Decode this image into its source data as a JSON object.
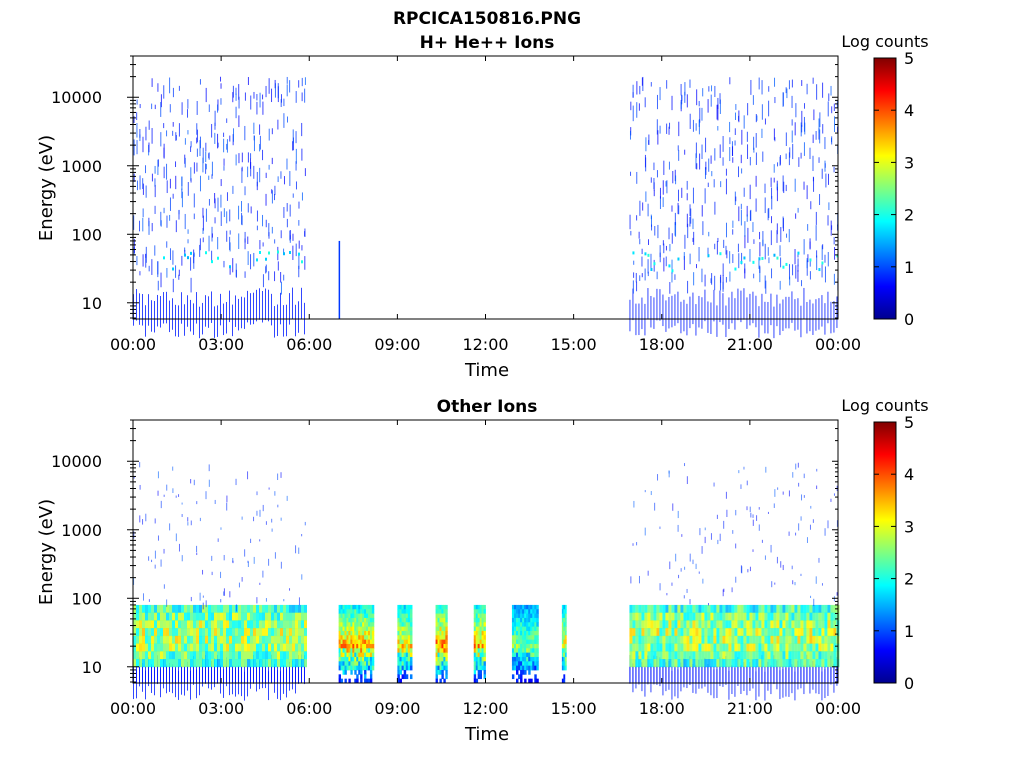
{
  "figure": {
    "title_line1": "RPCICA150816.PNG"
  },
  "chart_data": [
    {
      "type": "heatmap",
      "title": "H+ He++ Ions",
      "xlabel": "Time",
      "ylabel": "Energy (eV)",
      "y_scale": "log",
      "ylim": [
        5.8,
        40000
      ],
      "xlim_hours": [
        0,
        24
      ],
      "x_ticks": [
        {
          "hours": 0,
          "label": "00:00"
        },
        {
          "hours": 3,
          "label": "03:00"
        },
        {
          "hours": 6,
          "label": "06:00"
        },
        {
          "hours": 9,
          "label": "09:00"
        },
        {
          "hours": 12,
          "label": "12:00"
        },
        {
          "hours": 15,
          "label": "15:00"
        },
        {
          "hours": 18,
          "label": "18:00"
        },
        {
          "hours": 21,
          "label": "21:00"
        },
        {
          "hours": 24,
          "label": "00:00"
        }
      ],
      "y_ticks": [
        {
          "value": 10,
          "label": "10"
        },
        {
          "value": 100,
          "label": "100"
        },
        {
          "value": 1000,
          "label": "1000"
        },
        {
          "value": 10000,
          "label": "10000"
        }
      ],
      "colorbar": {
        "label": "Log counts",
        "range": [
          0,
          5
        ],
        "ticks": [
          "0",
          "1",
          "2",
          "3",
          "4",
          "5"
        ],
        "colormap": "jet"
      },
      "data_blocks": [
        {
          "t_start": 0.0,
          "t_end": 5.9,
          "e_low": 5.8,
          "e_high": 20000,
          "peak_log_counts": 1.8,
          "style": "sparse"
        },
        {
          "t_start": 7.0,
          "t_end": 7.05,
          "e_low": 5.8,
          "e_high": 80,
          "peak_log_counts": 0.3,
          "style": "spike"
        },
        {
          "t_start": 16.9,
          "t_end": 24.0,
          "e_low": 5.8,
          "e_high": 20000,
          "peak_log_counts": 1.8,
          "style": "sparse"
        }
      ]
    },
    {
      "type": "heatmap",
      "title": "Other Ions",
      "xlabel": "Time",
      "ylabel": "Energy (eV)",
      "y_scale": "log",
      "ylim": [
        5.8,
        40000
      ],
      "xlim_hours": [
        0,
        24
      ],
      "x_ticks": [
        {
          "hours": 0,
          "label": "00:00"
        },
        {
          "hours": 3,
          "label": "03:00"
        },
        {
          "hours": 6,
          "label": "06:00"
        },
        {
          "hours": 9,
          "label": "09:00"
        },
        {
          "hours": 12,
          "label": "12:00"
        },
        {
          "hours": 15,
          "label": "15:00"
        },
        {
          "hours": 18,
          "label": "18:00"
        },
        {
          "hours": 21,
          "label": "21:00"
        },
        {
          "hours": 24,
          "label": "00:00"
        }
      ],
      "y_ticks": [
        {
          "value": 10,
          "label": "10"
        },
        {
          "value": 100,
          "label": "100"
        },
        {
          "value": 1000,
          "label": "1000"
        },
        {
          "value": 10000,
          "label": "10000"
        }
      ],
      "colorbar": {
        "label": "Log counts",
        "range": [
          0,
          5
        ],
        "ticks": [
          "0",
          "1",
          "2",
          "3",
          "4",
          "5"
        ],
        "colormap": "jet"
      },
      "data_blocks": [
        {
          "t_start": 0.0,
          "t_end": 5.9,
          "e_low": 5.8,
          "e_high": 10000,
          "peak_log_counts": 3.5,
          "style": "band"
        },
        {
          "t_start": 7.0,
          "t_end": 8.2,
          "e_low": 5.8,
          "e_high": 80,
          "peak_log_counts": 3.8,
          "style": "burst"
        },
        {
          "t_start": 9.0,
          "t_end": 9.5,
          "e_low": 5.8,
          "e_high": 80,
          "peak_log_counts": 3.5,
          "style": "burst"
        },
        {
          "t_start": 10.3,
          "t_end": 10.7,
          "e_low": 5.8,
          "e_high": 80,
          "peak_log_counts": 4.0,
          "style": "burst"
        },
        {
          "t_start": 11.6,
          "t_end": 12.0,
          "e_low": 5.8,
          "e_high": 80,
          "peak_log_counts": 3.8,
          "style": "burst"
        },
        {
          "t_start": 12.9,
          "t_end": 13.8,
          "e_low": 5.8,
          "e_high": 80,
          "peak_log_counts": 2.8,
          "style": "burst"
        },
        {
          "t_start": 14.6,
          "t_end": 14.75,
          "e_low": 5.8,
          "e_high": 80,
          "peak_log_counts": 3.4,
          "style": "burst"
        },
        {
          "t_start": 16.9,
          "t_end": 24.0,
          "e_low": 5.8,
          "e_high": 10000,
          "peak_log_counts": 3.5,
          "style": "band"
        }
      ]
    }
  ]
}
